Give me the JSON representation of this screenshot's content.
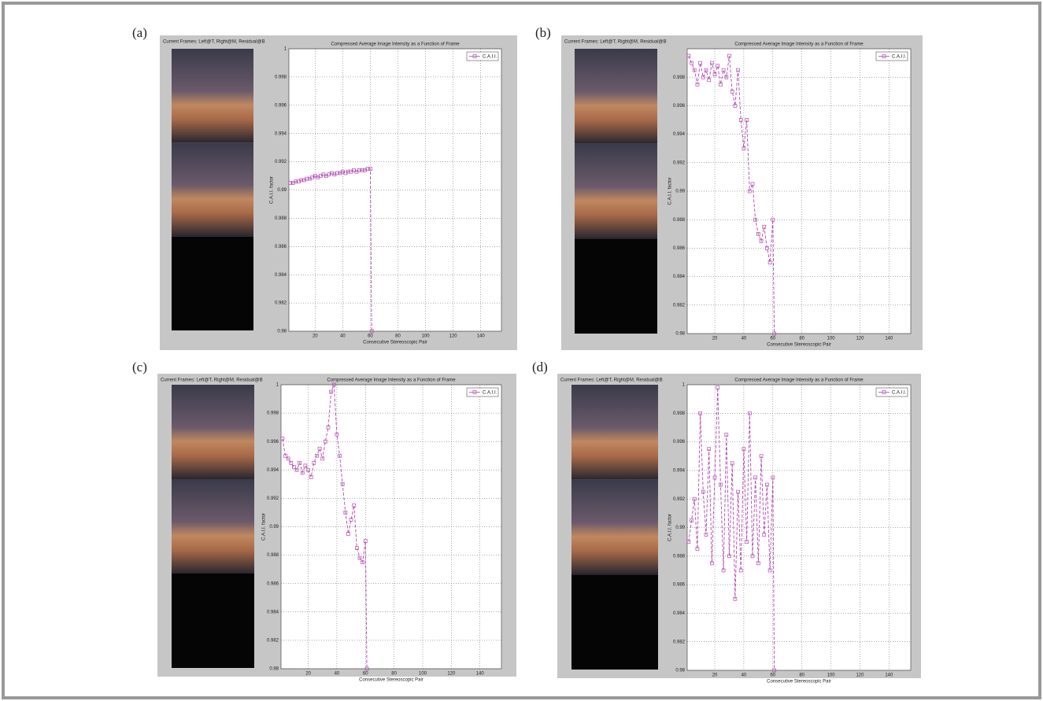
{
  "chart_data": [
    {
      "type": "line",
      "label": "(a)",
      "header": "Current Frames: Left@T, Right@M, Residual@B",
      "title": "Compressed Average Image Intensity as a Function of Frame",
      "xlabel": "Consecutive Stereoscopic Pair",
      "ylabel": "C.A.I.I. factor",
      "xlim": [
        1,
        155
      ],
      "xticks": [
        20,
        40,
        60,
        80,
        100,
        120,
        140
      ],
      "ylim": [
        0.98,
        1
      ],
      "yticks": [
        0.98,
        0.982,
        0.984,
        0.986,
        0.988,
        0.99,
        0.992,
        0.994,
        0.996,
        0.998,
        1
      ],
      "grid": true,
      "legend": "upper right",
      "x": [
        2,
        4,
        6,
        8,
        10,
        12,
        14,
        16,
        18,
        20,
        22,
        24,
        26,
        28,
        30,
        32,
        34,
        36,
        38,
        40,
        42,
        44,
        46,
        48,
        50,
        52,
        54,
        56,
        58,
        60,
        61
      ],
      "series": [
        {
          "name": "C.A.I.I.",
          "color": "#b04ab0",
          "values": [
            0.9905,
            0.9905,
            0.9906,
            0.9906,
            0.9907,
            0.9907,
            0.9908,
            0.9908,
            0.9909,
            0.991,
            0.9909,
            0.991,
            0.9911,
            0.991,
            0.9911,
            0.9912,
            0.9911,
            0.9912,
            0.9912,
            0.9913,
            0.9912,
            0.9913,
            0.9913,
            0.9914,
            0.9913,
            0.9914,
            0.9914,
            0.9914,
            0.9915,
            0.9915,
            0.98
          ]
        }
      ]
    },
    {
      "type": "line",
      "label": "(b)",
      "header": "Current Frames: Left@T, Right@M, Residual@B",
      "title": "Compressed Average Image Intensity as a Function of Frame",
      "xlabel": "Consecutive Stereoscopic Pair",
      "ylabel": "C.A.I.I. factor",
      "xlim": [
        1,
        155
      ],
      "xticks": [
        20,
        40,
        60,
        80,
        100,
        120,
        140
      ],
      "ylim": [
        0.98,
        1
      ],
      "yticks": [
        0.98,
        0.982,
        0.984,
        0.986,
        0.988,
        0.99,
        0.992,
        0.994,
        0.996,
        0.998
      ],
      "grid": true,
      "legend": "upper right",
      "x": [
        2,
        4,
        6,
        8,
        10,
        12,
        14,
        16,
        18,
        20,
        22,
        24,
        26,
        28,
        30,
        32,
        34,
        36,
        38,
        40,
        42,
        44,
        46,
        48,
        50,
        52,
        54,
        56,
        58,
        60,
        61
      ],
      "series": [
        {
          "name": "C.A.I.I.",
          "color": "#b04ab0",
          "values": [
            0.9995,
            0.999,
            0.9985,
            0.9975,
            0.999,
            0.998,
            0.9985,
            0.9978,
            0.999,
            0.9982,
            0.9988,
            0.9975,
            0.9985,
            0.998,
            0.9995,
            0.997,
            0.996,
            0.9985,
            0.995,
            0.993,
            0.995,
            0.99,
            0.9905,
            0.988,
            0.987,
            0.9865,
            0.9875,
            0.986,
            0.985,
            0.988,
            0.98
          ]
        }
      ]
    },
    {
      "type": "line",
      "label": "(c)",
      "header": "Current Frames: Left@T, Right@M, Residual@B",
      "title": "Compressed Average Image Intensity as a Function of Frame",
      "xlabel": "Consecutive Stereoscopic Pair",
      "ylabel": "C.A.I.I. factor",
      "xlim": [
        1,
        155
      ],
      "xticks": [
        20,
        40,
        60,
        80,
        100,
        120,
        140
      ],
      "ylim": [
        0.98,
        1
      ],
      "yticks": [
        0.98,
        0.982,
        0.984,
        0.986,
        0.988,
        0.99,
        0.992,
        0.994,
        0.996,
        0.998,
        1
      ],
      "grid": true,
      "legend": "upper right",
      "x": [
        2,
        4,
        6,
        8,
        10,
        12,
        14,
        16,
        18,
        20,
        22,
        24,
        26,
        28,
        30,
        32,
        34,
        36,
        38,
        40,
        42,
        44,
        46,
        48,
        50,
        52,
        54,
        56,
        58,
        60,
        61
      ],
      "series": [
        {
          "name": "C.A.I.I.",
          "color": "#b04ab0",
          "values": [
            0.9962,
            0.995,
            0.9948,
            0.9945,
            0.9942,
            0.994,
            0.9945,
            0.9938,
            0.9943,
            0.994,
            0.9935,
            0.9945,
            0.995,
            0.9955,
            0.9948,
            0.996,
            0.997,
            0.9995,
            1,
            0.9965,
            0.995,
            0.993,
            0.991,
            0.9895,
            0.9905,
            0.9915,
            0.9885,
            0.9878,
            0.9875,
            0.989,
            0.98
          ]
        }
      ]
    },
    {
      "type": "line",
      "label": "(d)",
      "header": "Current Frames: Left@T, Right@M, Residual@B",
      "title": "Compressed Average Image Intensity as a Function of Frame",
      "xlabel": "Consecutive Stereoscopic Pair",
      "ylabel": "C.A.I.I. factor",
      "xlim": [
        1,
        155
      ],
      "xticks": [
        20,
        40,
        60,
        80,
        100,
        120,
        140
      ],
      "ylim": [
        0.98,
        1
      ],
      "yticks": [
        0.98,
        0.982,
        0.984,
        0.986,
        0.988,
        0.99,
        0.992,
        0.994,
        0.996,
        0.998,
        1
      ],
      "grid": true,
      "legend": "upper right",
      "x": [
        2,
        4,
        6,
        8,
        10,
        12,
        14,
        16,
        18,
        20,
        22,
        24,
        26,
        28,
        30,
        32,
        34,
        36,
        38,
        40,
        42,
        44,
        46,
        48,
        50,
        52,
        54,
        56,
        58,
        60,
        61
      ],
      "series": [
        {
          "name": "C.A.I.I.",
          "color": "#b04ab0",
          "values": [
            0.989,
            0.9905,
            0.992,
            0.9885,
            0.998,
            0.9925,
            0.9895,
            0.9955,
            0.9875,
            0.9935,
            0.9998,
            0.993,
            0.987,
            0.9965,
            0.988,
            0.9945,
            0.985,
            0.9925,
            0.987,
            0.9955,
            0.989,
            0.998,
            0.988,
            0.9935,
            0.9875,
            0.995,
            0.9895,
            0.993,
            0.987,
            0.9935,
            0.98
          ]
        }
      ]
    }
  ]
}
